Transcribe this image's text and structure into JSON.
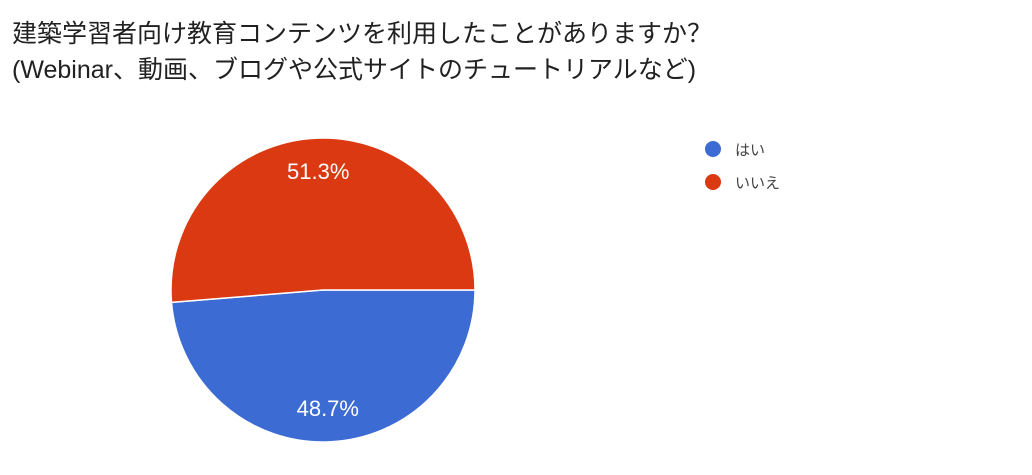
{
  "page": {
    "background_color": "#FFFFFF"
  },
  "title": {
    "line1": "建築学習者向け教育コンテンツを利用したことがありますか？",
    "line2": "(Webinar、動画、ブログや公式サイトのチュートリアルなど)",
    "color": "#212121"
  },
  "legend": {
    "position": "right",
    "items": [
      {
        "label": "はい",
        "color": "#3B6BD3"
      },
      {
        "label": "いいえ",
        "color": "#DB3912"
      }
    ]
  },
  "chart_data": {
    "type": "pie",
    "title": "建築学習者向け教育コンテンツを利用したことがありますか？ (Webinar、動画、ブログや公式サイトのチュートリアルなど)",
    "categories": [
      "はい",
      "いいえ"
    ],
    "keys": [
      "yes",
      "no"
    ],
    "values": [
      48.7,
      51.3
    ],
    "unit": "%",
    "value_labels": [
      "48.7%",
      "51.3%"
    ],
    "colors": [
      "#3B6BD3",
      "#DB3912"
    ],
    "slice_label_color": "#FFFFFF",
    "separator_color": "#FFFFFF",
    "start_angle_deg": 0,
    "direction": "clockwise",
    "legend_position": "right",
    "grid": false
  }
}
